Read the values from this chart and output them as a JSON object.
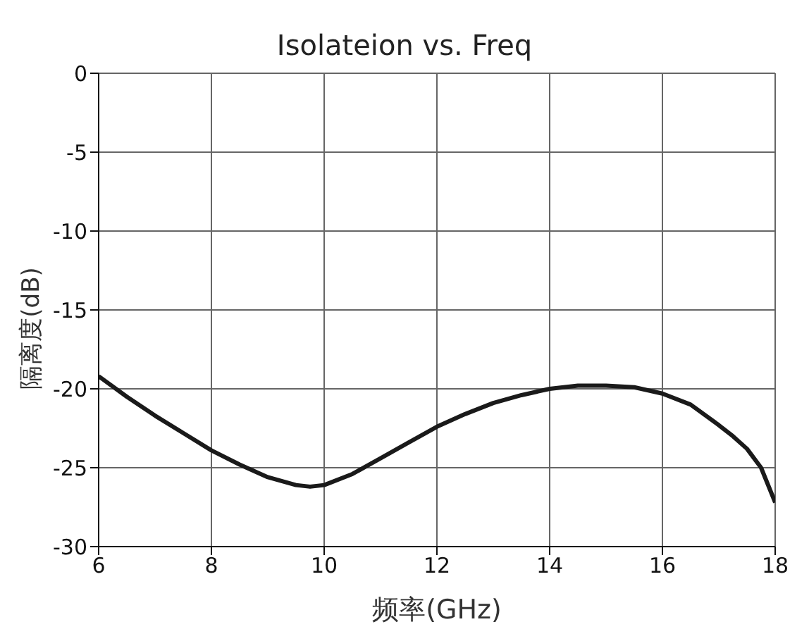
{
  "chart_data": {
    "type": "line",
    "title": "Isolateion vs. Freq",
    "xlabel": "频率(GHz)",
    "ylabel": "隔离度(dB)",
    "x": [
      6,
      6.5,
      7,
      7.5,
      8,
      8.5,
      9,
      9.5,
      9.75,
      10,
      10.5,
      11,
      11.5,
      12,
      12.5,
      13,
      13.5,
      14,
      14.5,
      15,
      15.5,
      16,
      16.5,
      17,
      17.25,
      17.5,
      17.75,
      18
    ],
    "series": [
      {
        "color": "#1a1a1a",
        "values": [
          -19.2,
          -20.5,
          -21.7,
          -22.8,
          -23.9,
          -24.8,
          -25.6,
          -26.1,
          -26.2,
          -26.1,
          -25.4,
          -24.4,
          -23.4,
          -22.4,
          -21.6,
          -20.9,
          -20.4,
          -20.0,
          -19.8,
          -19.8,
          -19.9,
          -20.3,
          -21.0,
          -22.3,
          -23.0,
          -23.8,
          -25.0,
          -27.2
        ]
      }
    ],
    "xlim": [
      6,
      18
    ],
    "xticks": [
      6,
      8,
      10,
      12,
      14,
      16,
      18
    ],
    "ylim": [
      -30,
      0
    ],
    "yticks": [
      -30,
      -25,
      -20,
      -15,
      -10,
      -5,
      0
    ],
    "grid": true,
    "legend": false,
    "marker": "none",
    "line_style": "solid"
  }
}
